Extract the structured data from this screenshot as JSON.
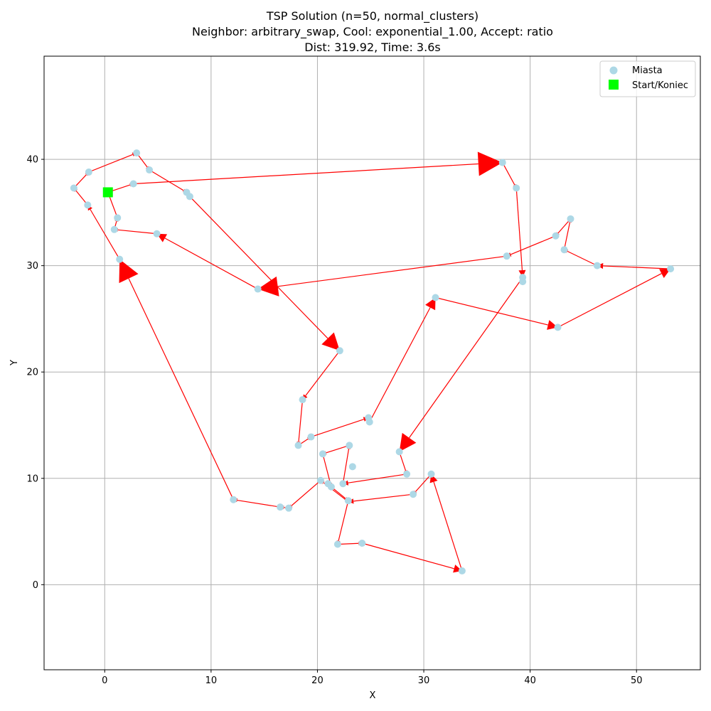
{
  "chart_data": {
    "type": "scatter",
    "title_lines": [
      "TSP Solution (n=50, normal_clusters)",
      "Neighbor: arbitrary_swap, Cool: exponential_1.00, Accept: ratio",
      "Dist: 319.92, Time: 3.6s"
    ],
    "xlabel": "X",
    "ylabel": "Y",
    "xlim": [
      -5.7,
      56.0
    ],
    "ylim": [
      -8.0,
      49.7
    ],
    "xticks": [
      0,
      10,
      20,
      30,
      40,
      50
    ],
    "yticks": [
      0,
      10,
      20,
      30,
      40
    ],
    "grid": true,
    "legend": {
      "position": "top-right",
      "entries": [
        {
          "label": "Miasta",
          "marker": "circle",
          "color": "#add8e6"
        },
        {
          "label": "Start/Koniec",
          "marker": "square",
          "color": "#00ff00"
        }
      ]
    },
    "colors": {
      "city": "#add8e6",
      "start": "#00ff00",
      "route": "#ff0000"
    },
    "start": [
      0.3,
      36.9
    ],
    "route": [
      [
        0.3,
        36.9
      ],
      [
        2.7,
        37.7
      ],
      [
        37.4,
        39.7
      ],
      [
        38.7,
        37.3
      ],
      [
        39.3,
        28.9
      ],
      [
        27.7,
        12.5
      ],
      [
        28.4,
        10.4
      ],
      [
        22.4,
        9.5
      ],
      [
        23.0,
        13.1
      ],
      [
        20.5,
        12.3
      ],
      [
        21.3,
        9.2
      ],
      [
        22.9,
        7.9
      ],
      [
        21.9,
        3.8
      ],
      [
        24.2,
        3.9
      ],
      [
        33.6,
        1.3
      ],
      [
        30.7,
        10.4
      ],
      [
        29.0,
        8.5
      ],
      [
        22.9,
        7.8
      ],
      [
        20.3,
        9.8
      ],
      [
        17.3,
        7.2
      ],
      [
        16.5,
        7.3
      ],
      [
        12.1,
        8.0
      ],
      [
        1.4,
        30.6
      ],
      [
        -1.6,
        35.7
      ],
      [
        -2.9,
        37.3
      ],
      [
        -1.5,
        38.8
      ],
      [
        3.0,
        40.6
      ],
      [
        4.2,
        39.0
      ],
      [
        7.7,
        36.9
      ],
      [
        8.0,
        36.5
      ],
      [
        22.1,
        22.0
      ],
      [
        18.6,
        17.4
      ],
      [
        18.2,
        13.1
      ],
      [
        19.4,
        13.9
      ],
      [
        24.8,
        15.7
      ],
      [
        24.9,
        15.3
      ],
      [
        31.1,
        27.0
      ],
      [
        42.6,
        24.2
      ],
      [
        53.2,
        29.7
      ],
      [
        46.3,
        30.0
      ],
      [
        43.2,
        31.5
      ],
      [
        43.8,
        34.4
      ],
      [
        42.4,
        32.8
      ],
      [
        37.8,
        30.9
      ],
      [
        14.4,
        27.8
      ],
      [
        4.9,
        33.0
      ],
      [
        0.9,
        33.4
      ],
      [
        1.2,
        34.5
      ],
      [
        0.3,
        36.9
      ]
    ],
    "cities": [
      [
        2.7,
        37.7
      ],
      [
        37.4,
        39.7
      ],
      [
        38.7,
        37.3
      ],
      [
        39.3,
        28.9
      ],
      [
        39.3,
        28.5
      ],
      [
        27.7,
        12.5
      ],
      [
        28.4,
        10.4
      ],
      [
        22.4,
        9.5
      ],
      [
        23.3,
        11.1
      ],
      [
        23.0,
        13.1
      ],
      [
        20.5,
        12.3
      ],
      [
        21.0,
        9.5
      ],
      [
        21.3,
        9.2
      ],
      [
        22.9,
        7.9
      ],
      [
        21.9,
        3.8
      ],
      [
        24.2,
        3.9
      ],
      [
        33.6,
        1.3
      ],
      [
        30.7,
        10.4
      ],
      [
        29.0,
        8.5
      ],
      [
        20.3,
        9.8
      ],
      [
        17.3,
        7.2
      ],
      [
        16.5,
        7.3
      ],
      [
        12.1,
        8.0
      ],
      [
        1.4,
        30.6
      ],
      [
        -1.6,
        35.7
      ],
      [
        -2.9,
        37.3
      ],
      [
        -1.5,
        38.8
      ],
      [
        3.0,
        40.6
      ],
      [
        4.2,
        39.0
      ],
      [
        7.7,
        36.9
      ],
      [
        8.0,
        36.5
      ],
      [
        22.1,
        22.0
      ],
      [
        18.6,
        17.4
      ],
      [
        18.2,
        13.1
      ],
      [
        19.4,
        13.9
      ],
      [
        24.8,
        15.7
      ],
      [
        24.9,
        15.3
      ],
      [
        31.1,
        27.0
      ],
      [
        42.6,
        24.2
      ],
      [
        53.2,
        29.7
      ],
      [
        46.3,
        30.0
      ],
      [
        43.2,
        31.5
      ],
      [
        43.8,
        34.4
      ],
      [
        42.4,
        32.8
      ],
      [
        37.8,
        30.9
      ],
      [
        14.4,
        27.8
      ],
      [
        4.9,
        33.0
      ],
      [
        0.9,
        33.4
      ],
      [
        1.2,
        34.5
      ]
    ]
  }
}
